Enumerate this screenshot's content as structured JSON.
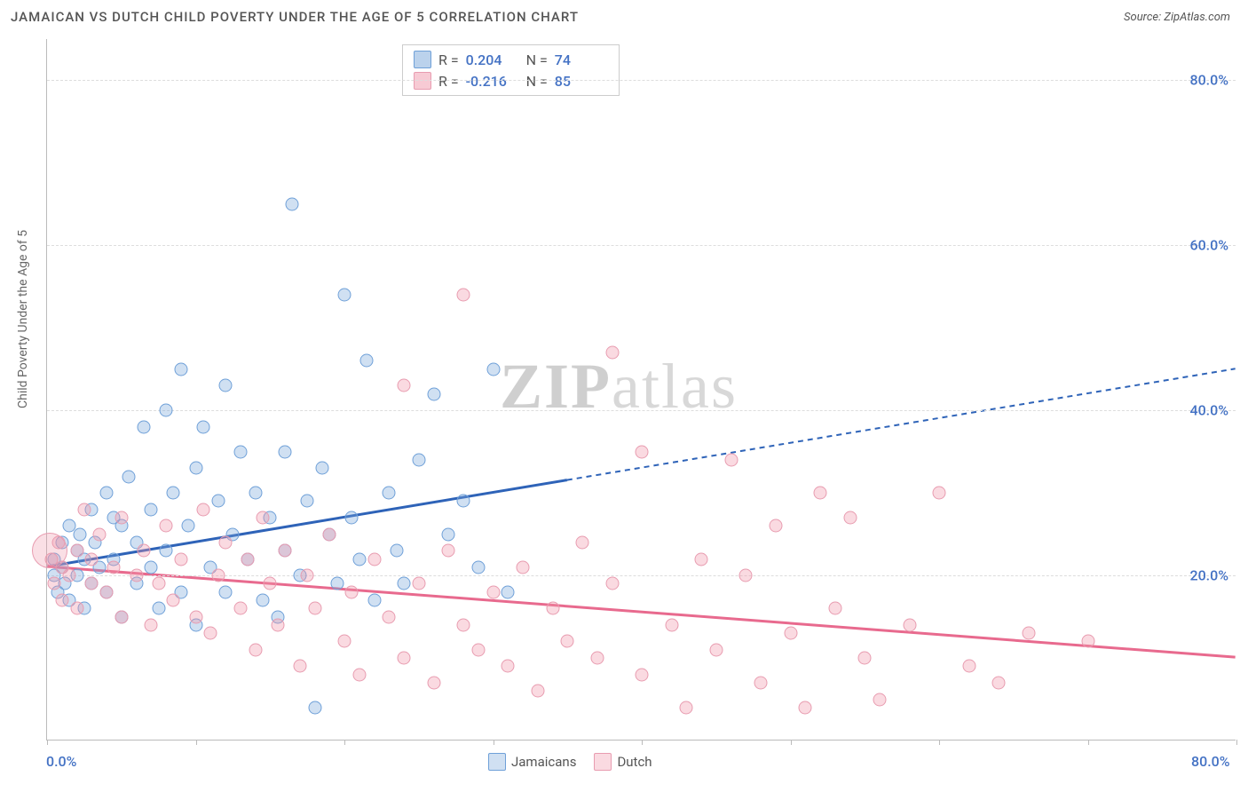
{
  "title": "JAMAICAN VS DUTCH CHILD POVERTY UNDER THE AGE OF 5 CORRELATION CHART",
  "source": "Source: ZipAtlas.com",
  "ylabel": "Child Poverty Under the Age of 5",
  "watermark": "ZIPatlas",
  "chart": {
    "type": "scatter",
    "xlim": [
      0,
      80
    ],
    "ylim": [
      0,
      85
    ],
    "xticks": [
      0,
      10,
      20,
      30,
      40,
      50,
      60,
      70,
      80
    ],
    "xtick_labels": {
      "0": "0.0%",
      "80": "80.0%"
    },
    "yticks": [
      20,
      40,
      60,
      80
    ],
    "ytick_labels": [
      "20.0%",
      "40.0%",
      "60.0%",
      "80.0%"
    ],
    "grid_color": "#dddddd",
    "axis_color": "#bbbbbb",
    "tick_label_color": "#4472c4",
    "background_color": "#ffffff",
    "series": [
      {
        "name": "Jamaicans",
        "marker_fill": "rgba(120,165,218,0.35)",
        "marker_stroke": "#6fa0d8",
        "marker_size": 15,
        "trend_color": "#2e63b8",
        "trend_width": 3,
        "trend_solid_until_x": 35,
        "trend": {
          "y_at_x0": 21,
          "y_at_x80": 45
        },
        "R": "0.204",
        "N": "74",
        "points": [
          [
            0.5,
            20
          ],
          [
            0.5,
            22
          ],
          [
            0.7,
            18
          ],
          [
            1,
            24
          ],
          [
            1,
            21
          ],
          [
            1.2,
            19
          ],
          [
            1.5,
            26
          ],
          [
            1.5,
            17
          ],
          [
            2,
            23
          ],
          [
            2,
            20
          ],
          [
            2.2,
            25
          ],
          [
            2.5,
            16
          ],
          [
            2.5,
            22
          ],
          [
            3,
            28
          ],
          [
            3,
            19
          ],
          [
            3.2,
            24
          ],
          [
            3.5,
            21
          ],
          [
            4,
            30
          ],
          [
            4,
            18
          ],
          [
            4.5,
            27
          ],
          [
            4.5,
            22
          ],
          [
            5,
            15
          ],
          [
            5,
            26
          ],
          [
            5.5,
            32
          ],
          [
            6,
            19
          ],
          [
            6,
            24
          ],
          [
            6.5,
            38
          ],
          [
            7,
            21
          ],
          [
            7,
            28
          ],
          [
            7.5,
            16
          ],
          [
            8,
            40
          ],
          [
            8,
            23
          ],
          [
            8.5,
            30
          ],
          [
            9,
            18
          ],
          [
            9,
            45
          ],
          [
            9.5,
            26
          ],
          [
            10,
            14
          ],
          [
            10,
            33
          ],
          [
            10.5,
            38
          ],
          [
            11,
            21
          ],
          [
            11.5,
            29
          ],
          [
            12,
            43
          ],
          [
            12,
            18
          ],
          [
            12.5,
            25
          ],
          [
            13,
            35
          ],
          [
            13.5,
            22
          ],
          [
            14,
            30
          ],
          [
            14.5,
            17
          ],
          [
            15,
            27
          ],
          [
            15.5,
            15
          ],
          [
            16,
            23
          ],
          [
            16,
            35
          ],
          [
            16.5,
            65
          ],
          [
            17,
            20
          ],
          [
            17.5,
            29
          ],
          [
            18,
            4
          ],
          [
            18.5,
            33
          ],
          [
            19,
            25
          ],
          [
            19.5,
            19
          ],
          [
            20,
            54
          ],
          [
            20.5,
            27
          ],
          [
            21,
            22
          ],
          [
            21.5,
            46
          ],
          [
            22,
            17
          ],
          [
            23,
            30
          ],
          [
            23.5,
            23
          ],
          [
            24,
            19
          ],
          [
            25,
            34
          ],
          [
            26,
            42
          ],
          [
            27,
            25
          ],
          [
            28,
            29
          ],
          [
            29,
            21
          ],
          [
            30,
            45
          ],
          [
            31,
            18
          ]
        ]
      },
      {
        "name": "Dutch",
        "marker_fill": "rgba(240,150,170,0.35)",
        "marker_stroke": "#e89cb0",
        "marker_size": 15,
        "trend_color": "#e86a8e",
        "trend_width": 3,
        "trend_solid_until_x": 80,
        "trend": {
          "y_at_x0": 21,
          "y_at_x80": 10
        },
        "R": "-0.216",
        "N": "85",
        "points": [
          [
            0.3,
            22
          ],
          [
            0.5,
            19
          ],
          [
            0.8,
            24
          ],
          [
            1,
            17
          ],
          [
            1,
            21
          ],
          [
            1.5,
            20
          ],
          [
            2,
            23
          ],
          [
            2,
            16
          ],
          [
            2.5,
            28
          ],
          [
            3,
            19
          ],
          [
            3,
            22
          ],
          [
            3.5,
            25
          ],
          [
            4,
            18
          ],
          [
            4.5,
            21
          ],
          [
            5,
            15
          ],
          [
            5,
            27
          ],
          [
            6,
            20
          ],
          [
            6.5,
            23
          ],
          [
            7,
            14
          ],
          [
            7.5,
            19
          ],
          [
            8,
            26
          ],
          [
            8.5,
            17
          ],
          [
            9,
            22
          ],
          [
            10,
            15
          ],
          [
            10.5,
            28
          ],
          [
            11,
            13
          ],
          [
            11.5,
            20
          ],
          [
            12,
            24
          ],
          [
            13,
            16
          ],
          [
            13.5,
            22
          ],
          [
            14,
            11
          ],
          [
            14.5,
            27
          ],
          [
            15,
            19
          ],
          [
            15.5,
            14
          ],
          [
            16,
            23
          ],
          [
            17,
            9
          ],
          [
            17.5,
            20
          ],
          [
            18,
            16
          ],
          [
            19,
            25
          ],
          [
            20,
            12
          ],
          [
            20.5,
            18
          ],
          [
            21,
            8
          ],
          [
            22,
            22
          ],
          [
            23,
            15
          ],
          [
            24,
            10
          ],
          [
            24,
            43
          ],
          [
            25,
            19
          ],
          [
            26,
            7
          ],
          [
            27,
            23
          ],
          [
            28,
            14
          ],
          [
            28,
            54
          ],
          [
            29,
            11
          ],
          [
            30,
            18
          ],
          [
            31,
            9
          ],
          [
            32,
            21
          ],
          [
            33,
            6
          ],
          [
            34,
            16
          ],
          [
            35,
            12
          ],
          [
            36,
            24
          ],
          [
            37,
            10
          ],
          [
            38,
            47
          ],
          [
            38,
            19
          ],
          [
            40,
            8
          ],
          [
            40,
            35
          ],
          [
            42,
            14
          ],
          [
            43,
            4
          ],
          [
            44,
            22
          ],
          [
            45,
            11
          ],
          [
            46,
            34
          ],
          [
            47,
            20
          ],
          [
            48,
            7
          ],
          [
            49,
            26
          ],
          [
            50,
            13
          ],
          [
            51,
            4
          ],
          [
            52,
            30
          ],
          [
            53,
            16
          ],
          [
            54,
            27
          ],
          [
            55,
            10
          ],
          [
            56,
            5
          ],
          [
            58,
            14
          ],
          [
            60,
            30
          ],
          [
            62,
            9
          ],
          [
            64,
            7
          ],
          [
            66,
            13
          ],
          [
            70,
            12
          ]
        ]
      }
    ],
    "legend": {
      "items": [
        "Jamaicans",
        "Dutch"
      ]
    },
    "stat_box": {
      "rows": [
        {
          "swatch_fill": "rgba(120,165,218,0.5)",
          "swatch_stroke": "#6fa0d8",
          "R": "0.204",
          "N": "74"
        },
        {
          "swatch_fill": "rgba(240,150,170,0.5)",
          "swatch_stroke": "#e89cb0",
          "R": "-0.216",
          "N": "85"
        }
      ]
    }
  }
}
